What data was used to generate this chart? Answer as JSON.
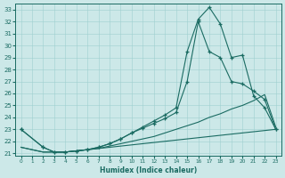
{
  "xlabel": "Humidex (Indice chaleur)",
  "bg_color": "#cce8e8",
  "line_color": "#1a6b62",
  "grid_color": "#9fcfcf",
  "xlim": [
    -0.5,
    23.5
  ],
  "ylim": [
    20.8,
    33.5
  ],
  "xticks": [
    0,
    1,
    2,
    3,
    4,
    5,
    6,
    7,
    8,
    9,
    10,
    11,
    12,
    13,
    14,
    15,
    16,
    17,
    18,
    19,
    20,
    21,
    22,
    23
  ],
  "yticks": [
    21,
    22,
    23,
    24,
    25,
    26,
    27,
    28,
    29,
    30,
    31,
    32,
    33
  ],
  "series1_x": [
    0,
    1,
    2,
    3,
    4,
    5,
    6,
    7,
    8,
    9,
    10,
    11,
    12,
    13,
    14,
    15,
    16,
    17,
    18,
    19,
    20,
    21,
    22,
    23
  ],
  "series1_y": [
    21.5,
    21.3,
    21.1,
    21.1,
    21.1,
    21.2,
    21.3,
    21.4,
    21.5,
    21.6,
    21.7,
    21.8,
    21.9,
    22.0,
    22.1,
    22.2,
    22.3,
    22.4,
    22.5,
    22.6,
    22.7,
    22.8,
    22.9,
    23.0
  ],
  "series2_x": [
    0,
    1,
    2,
    3,
    4,
    5,
    6,
    7,
    8,
    9,
    10,
    11,
    12,
    13,
    14,
    15,
    16,
    17,
    18,
    19,
    20,
    21,
    22,
    23
  ],
  "series2_y": [
    21.5,
    21.3,
    21.1,
    21.1,
    21.1,
    21.2,
    21.3,
    21.4,
    21.6,
    21.8,
    22.0,
    22.2,
    22.4,
    22.7,
    23.0,
    23.3,
    23.6,
    24.0,
    24.3,
    24.7,
    25.0,
    25.4,
    25.9,
    23.2
  ],
  "series3_x": [
    0,
    2,
    3,
    4,
    5,
    6,
    7,
    8,
    9,
    10,
    11,
    12,
    13,
    14,
    15,
    16,
    17,
    18,
    19,
    20,
    21,
    22,
    23
  ],
  "series3_y": [
    23.0,
    21.5,
    21.1,
    21.1,
    21.2,
    21.3,
    21.5,
    21.8,
    22.2,
    22.7,
    23.2,
    23.7,
    24.2,
    24.8,
    29.5,
    32.2,
    33.2,
    31.8,
    29.0,
    29.2,
    25.8,
    24.8,
    23.0
  ],
  "series4_x": [
    0,
    2,
    3,
    4,
    5,
    6,
    7,
    8,
    9,
    10,
    11,
    12,
    13,
    14,
    15,
    16,
    17,
    18,
    19,
    20,
    21,
    22,
    23
  ],
  "series4_y": [
    23.0,
    21.5,
    21.1,
    21.1,
    21.2,
    21.3,
    21.5,
    21.8,
    22.2,
    22.7,
    23.1,
    23.5,
    23.9,
    24.4,
    27.0,
    32.0,
    29.5,
    29.0,
    27.0,
    26.8,
    26.2,
    25.5,
    23.0
  ]
}
